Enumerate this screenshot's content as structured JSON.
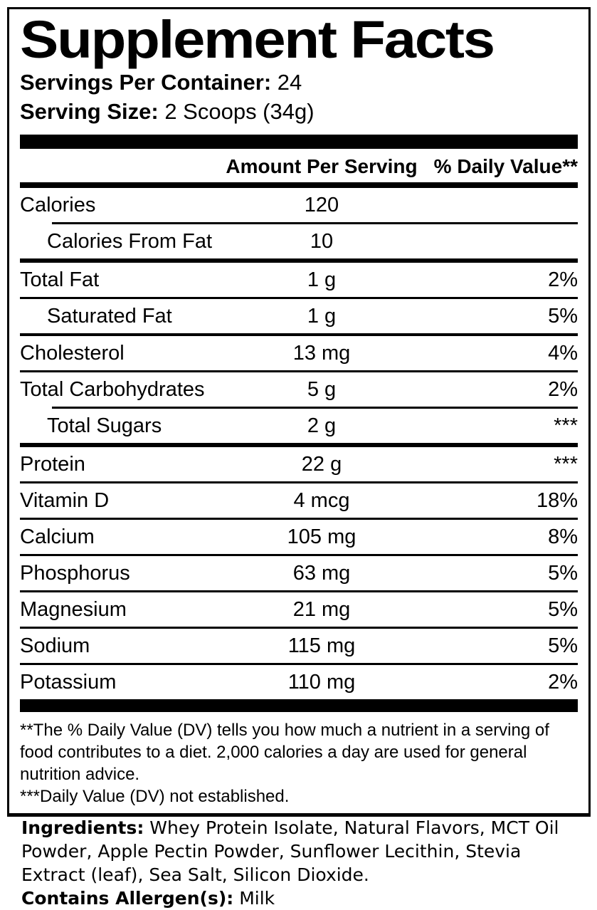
{
  "colors": {
    "ink": "#000000",
    "paper": "#ffffff"
  },
  "panel": {
    "title": "Supplement Facts",
    "servings_per_container": {
      "label": "Servings Per Container:",
      "value": "24"
    },
    "serving_size": {
      "label": "Serving Size:",
      "value": "2 Scoops (34g)"
    },
    "columns": {
      "amount": "Amount Per Serving",
      "daily_value": "% Daily Value**"
    },
    "rows": [
      {
        "name": "Calories",
        "amount": "120",
        "dv": ""
      },
      {
        "name": "Calories From Fat",
        "amount": "10",
        "dv": ""
      },
      {
        "name": "Total Fat",
        "amount": "1 g",
        "dv": "2%"
      },
      {
        "name": "Saturated Fat",
        "amount": "1 g",
        "dv": "5%"
      },
      {
        "name": "Cholesterol",
        "amount": "13 mg",
        "dv": "4%"
      },
      {
        "name": "Total Carbohydrates",
        "amount": "5 g",
        "dv": "2%"
      },
      {
        "name": "Total Sugars",
        "amount": "2 g",
        "dv": "***"
      },
      {
        "name": "Protein",
        "amount": "22 g",
        "dv": "***"
      },
      {
        "name": "Vitamin D",
        "amount": "4 mcg",
        "dv": "18%"
      },
      {
        "name": "Calcium",
        "amount": "105 mg",
        "dv": "8%"
      },
      {
        "name": "Phosphorus",
        "amount": "63 mg",
        "dv": "5%"
      },
      {
        "name": "Magnesium",
        "amount": "21 mg",
        "dv": "5%"
      },
      {
        "name": "Sodium",
        "amount": "115 mg",
        "dv": "5%"
      },
      {
        "name": "Potassium",
        "amount": "110 mg",
        "dv": "2%"
      }
    ],
    "footnotes": [
      "**The % Daily Value (DV) tells you how much a nutrient in a serving of food contributes to a diet. 2,000 calories a day are used for general nutrition advice.",
      "***Daily Value (DV) not established."
    ]
  },
  "ingredients": {
    "label": "Ingredients:",
    "text": "Whey Protein Isolate, Natural Flavors, MCT Oil Powder, Apple Pectin Powder, Sunflower Lecithin, Stevia Extract (leaf), Sea Salt, Silicon Dioxide."
  },
  "allergens": {
    "label": "Contains Allergen(s):",
    "text": "Milk"
  }
}
